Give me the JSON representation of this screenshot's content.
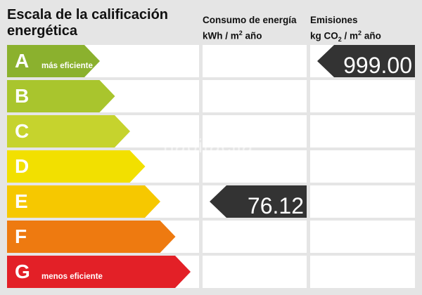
{
  "header": {
    "title": "Escala de la calificación energética",
    "consumo_line1": "Consumo de energía",
    "consumo_line2_pre": "kWh / m",
    "consumo_line2_sup": "2",
    "consumo_line2_post": " año",
    "emisiones_line1": "Emisiones",
    "emisiones_line2_pre": "kg CO",
    "emisiones_line2_sub": "2",
    "emisiones_line2_mid": " / m",
    "emisiones_line2_sup": "2",
    "emisiones_line2_post": " año"
  },
  "ratings": [
    {
      "letter": "A",
      "sub": "más eficiente",
      "color": "#8bb12e"
    },
    {
      "letter": "B",
      "sub": "",
      "color": "#a9c52d"
    },
    {
      "letter": "C",
      "sub": "",
      "color": "#c6d32d"
    },
    {
      "letter": "D",
      "sub": "",
      "color": "#f2e000"
    },
    {
      "letter": "E",
      "sub": "",
      "color": "#f6c800"
    },
    {
      "letter": "F",
      "sub": "",
      "color": "#ee7a10"
    },
    {
      "letter": "G",
      "sub": "menos eficiente",
      "color": "#e32027"
    }
  ],
  "consumo": {
    "value": "76.12",
    "rating": "E"
  },
  "emisiones": {
    "value": "999.00",
    "rating": "A"
  },
  "watermark": "habitaclia"
}
